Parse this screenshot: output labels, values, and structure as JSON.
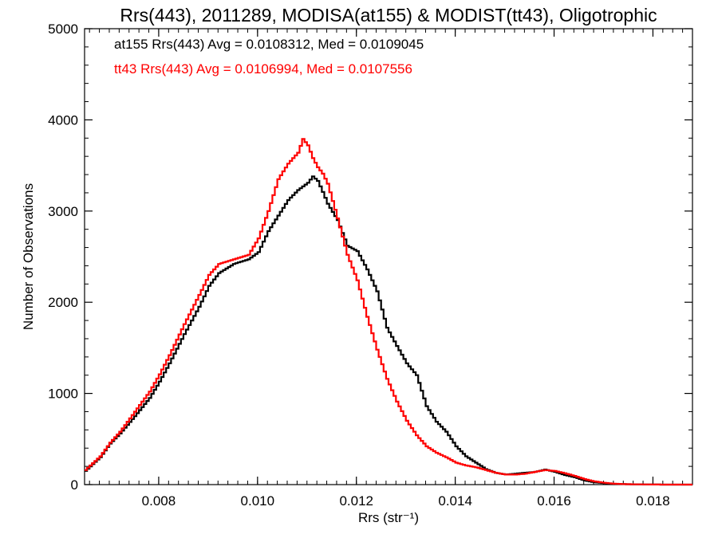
{
  "chart_data": {
    "type": "line",
    "title": "Rrs(443), 2011289, MODISA(at155) & MODIST(tt43), Oligotrophic",
    "xlabel": "Rrs (str⁻¹)",
    "ylabel": "Number of Observations",
    "xlim": [
      0.0065,
      0.0188
    ],
    "ylim": [
      0,
      5000
    ],
    "x_ticks": [
      "0.008",
      "0.010",
      "0.012",
      "0.014",
      "0.016",
      "0.018"
    ],
    "y_ticks": [
      "0",
      "1000",
      "2000",
      "3000",
      "4000",
      "5000"
    ],
    "grid": false,
    "annotations": [
      "at155 Rrs(443) Avg = 0.0108312, Med = 0.0109045",
      "tt43 Rrs(443) Avg = 0.0106994, Med = 0.0107556"
    ],
    "series": [
      {
        "color": "#000000",
        "step": true,
        "x": [
          0.0065,
          0.0068,
          0.007,
          0.0072,
          0.0075,
          0.0078,
          0.008,
          0.0082,
          0.0085,
          0.0088,
          0.009,
          0.0092,
          0.0095,
          0.0098,
          0.01,
          0.0102,
          0.0104,
          0.0106,
          0.0108,
          0.011,
          0.0111,
          0.0112,
          0.0113,
          0.0114,
          0.0116,
          0.0118,
          0.012,
          0.0122,
          0.0124,
          0.0126,
          0.0128,
          0.013,
          0.0132,
          0.0134,
          0.0136,
          0.0138,
          0.014,
          0.0142,
          0.0144,
          0.0146,
          0.0148,
          0.015,
          0.0152,
          0.0154,
          0.0156,
          0.0158,
          0.016,
          0.0162,
          0.0164,
          0.0166,
          0.0168,
          0.017,
          0.0172,
          0.0174,
          0.0176,
          0.0178,
          0.018,
          0.0182,
          0.0184,
          0.0186,
          0.0188
        ],
        "y": [
          150,
          300,
          450,
          560,
          750,
          950,
          1130,
          1330,
          1650,
          1950,
          2180,
          2320,
          2420,
          2470,
          2550,
          2780,
          2950,
          3120,
          3230,
          3310,
          3380,
          3330,
          3210,
          3080,
          2900,
          2620,
          2560,
          2360,
          2120,
          1720,
          1520,
          1330,
          1200,
          860,
          690,
          580,
          420,
          310,
          240,
          170,
          130,
          110,
          120,
          130,
          140,
          165,
          140,
          105,
          80,
          45,
          25,
          15,
          8,
          5,
          3,
          2,
          1,
          0,
          0,
          0,
          0
        ]
      },
      {
        "color": "#ff0000",
        "step": true,
        "x": [
          0.0065,
          0.0068,
          0.007,
          0.0072,
          0.0075,
          0.0078,
          0.008,
          0.0082,
          0.0085,
          0.0088,
          0.009,
          0.0092,
          0.0095,
          0.0098,
          0.01,
          0.0102,
          0.0104,
          0.0106,
          0.0108,
          0.0109,
          0.011,
          0.0111,
          0.0112,
          0.0113,
          0.0114,
          0.0116,
          0.0118,
          0.012,
          0.0122,
          0.0124,
          0.0126,
          0.0128,
          0.013,
          0.0132,
          0.0134,
          0.0136,
          0.0138,
          0.014,
          0.0142,
          0.0144,
          0.0146,
          0.0148,
          0.015,
          0.0152,
          0.0154,
          0.0156,
          0.0158,
          0.016,
          0.0162,
          0.0164,
          0.0166,
          0.0168,
          0.017,
          0.0172,
          0.0174,
          0.0176,
          0.0178,
          0.018,
          0.0182,
          0.0184,
          0.0186,
          0.0188
        ],
        "y": [
          160,
          310,
          460,
          580,
          800,
          1020,
          1210,
          1420,
          1760,
          2080,
          2300,
          2420,
          2470,
          2520,
          2700,
          3000,
          3350,
          3520,
          3640,
          3790,
          3720,
          3580,
          3480,
          3410,
          3300,
          2920,
          2520,
          2240,
          1840,
          1480,
          1160,
          910,
          700,
          540,
          420,
          350,
          300,
          240,
          210,
          190,
          160,
          130,
          110,
          110,
          120,
          140,
          160,
          150,
          125,
          95,
          60,
          35,
          20,
          10,
          5,
          3,
          2,
          1,
          0,
          0,
          0,
          0
        ]
      }
    ]
  }
}
